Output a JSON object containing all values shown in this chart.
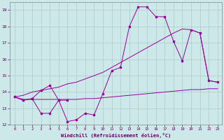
{
  "xlabel": "Windchill (Refroidissement éolien,°C)",
  "background_color": "#cce8e8",
  "grid_color": "#aacccc",
  "line_color": "#990099",
  "x": [
    0,
    1,
    2,
    3,
    4,
    5,
    6,
    7,
    8,
    9,
    10,
    11,
    12,
    13,
    14,
    15,
    16,
    17,
    18,
    19,
    20,
    21,
    22,
    23
  ],
  "series1": [
    13.7,
    13.5,
    13.6,
    12.7,
    12.7,
    13.5,
    12.2,
    12.3,
    12.7,
    12.6,
    13.9,
    15.3,
    15.5,
    18.0,
    19.2,
    19.2,
    18.6,
    18.6,
    17.1,
    15.9,
    17.8,
    17.6,
    14.7,
    14.6
  ],
  "series2": [
    13.7,
    13.5,
    13.6,
    14.1,
    14.4,
    13.5,
    13.5,
    null,
    null,
    null,
    null,
    null,
    null,
    null,
    null,
    null,
    null,
    null,
    null,
    null,
    null,
    null,
    null,
    null
  ],
  "series_flat": [
    13.7,
    13.55,
    13.55,
    13.55,
    13.55,
    13.55,
    13.55,
    13.55,
    13.6,
    13.6,
    13.65,
    13.7,
    13.75,
    13.8,
    13.85,
    13.9,
    13.95,
    14.0,
    14.05,
    14.1,
    14.15,
    14.15,
    14.2,
    14.2
  ],
  "series_linear": [
    13.7,
    13.8,
    14.0,
    14.1,
    14.2,
    14.3,
    14.5,
    14.6,
    14.8,
    15.0,
    15.2,
    15.5,
    15.8,
    16.1,
    16.4,
    16.7,
    17.0,
    17.3,
    17.6,
    17.85,
    17.8,
    17.6,
    14.7,
    14.6
  ],
  "ylim": [
    12,
    19.5
  ],
  "xlim": [
    -0.5,
    23.5
  ],
  "yticks": [
    12,
    13,
    14,
    15,
    16,
    17,
    18,
    19
  ],
  "xticks": [
    0,
    1,
    2,
    3,
    4,
    5,
    6,
    7,
    8,
    9,
    10,
    11,
    12,
    13,
    14,
    15,
    16,
    17,
    18,
    19,
    20,
    21,
    22,
    23
  ]
}
